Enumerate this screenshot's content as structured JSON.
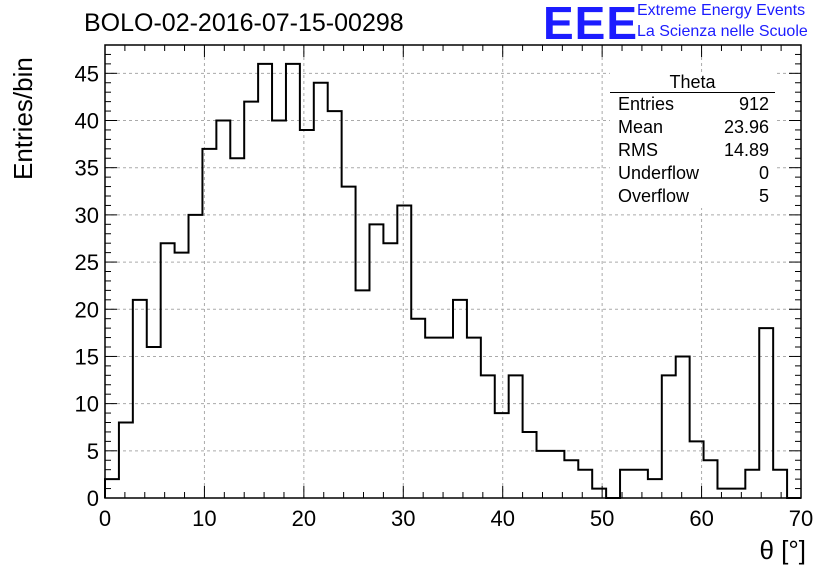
{
  "title": "BOLO-02-2016-07-15-00298",
  "logo": {
    "mark": "EEE",
    "line1": "Extreme Energy Events",
    "line2": "La Scienza nelle Scuole",
    "color": "#1c1cff"
  },
  "stats": {
    "name": "Theta",
    "rows": [
      {
        "label": "Entries",
        "value": "912"
      },
      {
        "label": "Mean",
        "value": "23.96"
      },
      {
        "label": "RMS",
        "value": "14.89"
      },
      {
        "label": "Underflow",
        "value": "0"
      },
      {
        "label": "Overflow",
        "value": "5"
      }
    ]
  },
  "chart_data": {
    "type": "histogram",
    "xlabel": "θ [°]",
    "ylabel": "Entries/bin",
    "xlim": [
      0,
      70
    ],
    "ylim": [
      0,
      48
    ],
    "xticks": [
      0,
      10,
      20,
      30,
      40,
      50,
      60,
      70
    ],
    "yticks": [
      0,
      5,
      10,
      15,
      20,
      25,
      30,
      35,
      40,
      45
    ],
    "grid": true,
    "bin_width": 1.4,
    "bin_edges_start": 0,
    "values": [
      2,
      8,
      21,
      16,
      27,
      26,
      30,
      37,
      40,
      36,
      42,
      46,
      40,
      46,
      39,
      44,
      41,
      33,
      22,
      29,
      27,
      31,
      19,
      17,
      17,
      21,
      17,
      13,
      9,
      13,
      7,
      5,
      5,
      4,
      3,
      1,
      0,
      3,
      3,
      2,
      13,
      15,
      6,
      4,
      1,
      1,
      3,
      18,
      3,
      0
    ]
  }
}
